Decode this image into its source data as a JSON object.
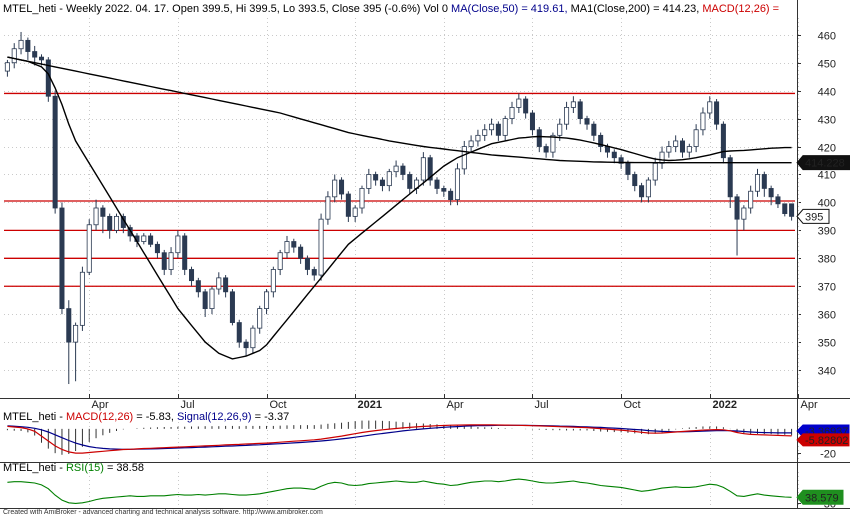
{
  "colors": {
    "bull": "#ffffff",
    "bear": "#2b3a52",
    "wick": "#2b3a52",
    "ma": "#000000",
    "support": "#cc0000",
    "macd": "#cc0000",
    "signal": "#00008b",
    "rsi": "#008000",
    "grid": "#c9c9c9"
  },
  "chart_data": [
    {
      "type": "candlestick",
      "header": {
        "symbol": "MTEL_heti",
        "info": " - Weekly 2022. 04. 17. Open 399.5, Hi 399.5, Lo 393.5, Close 395 (-0.6%) Vol 0 ",
        "ma50": "MA(Close,50) = 419.61, ",
        "ma200": "MA1(Close,200) = 414.23, ",
        "macd": "MACD(12,26) ="
      },
      "ylim": [
        330,
        466
      ],
      "yticks": [
        "340",
        "350",
        "360",
        "370",
        "380",
        "390",
        "400",
        "410",
        "420",
        "430",
        "440",
        "450",
        "460"
      ],
      "xticks": [
        {
          "label": "Apr",
          "i": 12
        },
        {
          "label": "Jul",
          "i": 25
        },
        {
          "label": "Oct",
          "i": 38
        },
        {
          "label": "2021",
          "i": 51
        },
        {
          "label": "Apr",
          "i": 64
        },
        {
          "label": "Jul",
          "i": 77
        },
        {
          "label": "Oct",
          "i": 90
        },
        {
          "label": "2022",
          "i": 103
        },
        {
          "label": "Apr",
          "i": 116
        }
      ],
      "support_levels": [
        439,
        400.5,
        390,
        380,
        370
      ],
      "price_tags": [
        {
          "value": 414.23,
          "label": "414.228",
          "style": "dark"
        },
        {
          "value": 395,
          "label": "395",
          "style": "light"
        }
      ],
      "closes": [
        450,
        455,
        458,
        454,
        452,
        451,
        438,
        398,
        362,
        350,
        356,
        375,
        392,
        398,
        395,
        390,
        395,
        391,
        388,
        386,
        388,
        385,
        382,
        376,
        382,
        388,
        376,
        372,
        368,
        362,
        369,
        373,
        368,
        357,
        350,
        348,
        355,
        362,
        368,
        376,
        382,
        386,
        384,
        380,
        376,
        374,
        394,
        402,
        408,
        403,
        395,
        398,
        405,
        410,
        408,
        406,
        411,
        413,
        410,
        405,
        408,
        416,
        408,
        405,
        404,
        401,
        412,
        420,
        422,
        424,
        426,
        428,
        424,
        430,
        434,
        437,
        432,
        426,
        420,
        418,
        424,
        428,
        434,
        436,
        430,
        428,
        424,
        420,
        418,
        416,
        414,
        410,
        406,
        402,
        408,
        414,
        418,
        420,
        422,
        418,
        420,
        426,
        432,
        436,
        428,
        416,
        402,
        394,
        398,
        404,
        410,
        405,
        402,
        399.5,
        396,
        395
      ],
      "opens": [
        447,
        450,
        455,
        458,
        454,
        452,
        451,
        438,
        398,
        362,
        350,
        356,
        375,
        392,
        398,
        395,
        390,
        395,
        391,
        388,
        386,
        388,
        385,
        382,
        376,
        382,
        388,
        376,
        372,
        368,
        362,
        369,
        373,
        368,
        357,
        350,
        348,
        355,
        362,
        368,
        376,
        382,
        386,
        384,
        380,
        376,
        374,
        394,
        402,
        408,
        403,
        395,
        398,
        405,
        410,
        408,
        406,
        411,
        413,
        410,
        405,
        408,
        416,
        408,
        405,
        404,
        401,
        412,
        420,
        422,
        424,
        426,
        428,
        424,
        430,
        434,
        437,
        432,
        426,
        420,
        418,
        424,
        428,
        434,
        436,
        430,
        428,
        424,
        420,
        418,
        416,
        414,
        410,
        406,
        402,
        408,
        414,
        418,
        420,
        422,
        418,
        420,
        426,
        432,
        436,
        428,
        416,
        402,
        394,
        398,
        404,
        410,
        405,
        402,
        399.5,
        399.5
      ],
      "highs": [
        451,
        457,
        461,
        459,
        456,
        453,
        452,
        440,
        400,
        365,
        357,
        377,
        394,
        401,
        399,
        396,
        396,
        396,
        392,
        389,
        389,
        389,
        386,
        383,
        384,
        390,
        389,
        377,
        373,
        369,
        370,
        375,
        374,
        369,
        358,
        351,
        356,
        363,
        369,
        377,
        383,
        388,
        387,
        385,
        381,
        377,
        396,
        404,
        410,
        409,
        404,
        399,
        406,
        412,
        411,
        409,
        412,
        415,
        414,
        411,
        409,
        418,
        417,
        409,
        406,
        405,
        414,
        422,
        424,
        426,
        428,
        430,
        429,
        431,
        436,
        439,
        438,
        433,
        427,
        421,
        425,
        430,
        436,
        438,
        437,
        431,
        429,
        425,
        421,
        419,
        417,
        415,
        411,
        407,
        409,
        416,
        420,
        422,
        424,
        423,
        421,
        428,
        434,
        438,
        437,
        429,
        417,
        403,
        399,
        406,
        412,
        411,
        406,
        403,
        399.5,
        399.5
      ],
      "lows": [
        445,
        448,
        453,
        451,
        449,
        449,
        436,
        396,
        360,
        335,
        336,
        354,
        374,
        390,
        389,
        387,
        389,
        389,
        386,
        384,
        385,
        384,
        380,
        374,
        374,
        380,
        374,
        370,
        366,
        359,
        360,
        367,
        366,
        356,
        348,
        345,
        346,
        353,
        360,
        366,
        374,
        380,
        382,
        378,
        374,
        372,
        372,
        392,
        400,
        401,
        393,
        393,
        396,
        403,
        406,
        404,
        404,
        409,
        408,
        403,
        403,
        406,
        406,
        403,
        402,
        399,
        399,
        410,
        418,
        420,
        422,
        424,
        422,
        422,
        428,
        432,
        430,
        424,
        418,
        416,
        416,
        422,
        426,
        432,
        428,
        426,
        422,
        418,
        416,
        414,
        412,
        408,
        404,
        400,
        400,
        406,
        412,
        416,
        418,
        416,
        416,
        418,
        424,
        430,
        426,
        414,
        398,
        381,
        390,
        396,
        402,
        402,
        399,
        398,
        395,
        393.5
      ],
      "ma50": [
        452,
        451.5,
        451,
        450.5,
        449.5,
        448.5,
        446,
        441,
        435,
        428,
        422,
        418,
        414,
        410,
        406,
        402,
        398,
        394,
        390,
        386,
        382,
        378,
        374,
        370,
        366,
        362,
        359,
        356,
        353,
        350,
        348,
        346,
        345,
        344,
        344.5,
        345,
        346,
        347,
        349,
        352,
        355,
        358,
        361,
        364,
        367,
        370,
        373,
        376,
        379,
        382,
        385,
        387,
        389,
        391,
        393,
        395,
        397,
        399,
        401,
        403,
        405,
        407,
        409,
        411,
        413,
        414.5,
        416,
        417,
        418,
        419,
        420,
        421,
        421.5,
        422,
        422.5,
        423,
        423.2,
        423.5,
        423.6,
        423.5,
        423.4,
        423.2,
        423,
        422.7,
        422.3,
        421.8,
        421.3,
        420.7,
        420.1,
        419.5,
        418.9,
        418.2,
        417.5,
        416.8,
        416.1,
        415.5,
        415.2,
        415,
        415.1,
        415.3,
        415.6,
        416,
        416.5,
        417,
        417.6,
        418.2,
        418.4,
        418.5,
        418.6,
        418.8,
        419,
        419.2,
        419.4,
        419.5,
        419.6,
        419.6
      ],
      "ma200": [
        null,
        null,
        null,
        null,
        null,
        null,
        null,
        null,
        null,
        null,
        null,
        null,
        null,
        null,
        null,
        null,
        null,
        null,
        null,
        null,
        null,
        null,
        null,
        null,
        null,
        null,
        null,
        null,
        null,
        null,
        null,
        null,
        null,
        null,
        null,
        null,
        null,
        null,
        null,
        null,
        null,
        null,
        null,
        null,
        null,
        null,
        null,
        null,
        null,
        null,
        null,
        null,
        null,
        null,
        null,
        null,
        null,
        null,
        null,
        null,
        null,
        null,
        null,
        null,
        null,
        null,
        null,
        null,
        null,
        null,
        null,
        null,
        null,
        null,
        null,
        null,
        null,
        null,
        null,
        null,
        null,
        null,
        null,
        null,
        null,
        null,
        null,
        null,
        null,
        null,
        null,
        null,
        null,
        null,
        null,
        null,
        null,
        null,
        null,
        null,
        null,
        null,
        null,
        null,
        null,
        null,
        null,
        null,
        null,
        null,
        null,
        null,
        null,
        null,
        null,
        null
      ],
      "ma200_visible": [
        452,
        451.5,
        451,
        450.5,
        450,
        449.5,
        449,
        448.5,
        448,
        447.5,
        447,
        446.5,
        446,
        445.5,
        445,
        444.5,
        444,
        443.5,
        443,
        442.5,
        442,
        441.5,
        441,
        440.5,
        440,
        439.5,
        439,
        438.5,
        438,
        437.5,
        437,
        436.5,
        436,
        435.5,
        435,
        434.5,
        434,
        433.5,
        433,
        432.5,
        432,
        431.3,
        430.6,
        429.9,
        429.2,
        428.5,
        427.8,
        427.1,
        426.4,
        425.7,
        425,
        424.5,
        424,
        423.5,
        423,
        422.5,
        422,
        421.6,
        421.2,
        420.8,
        420.4,
        420,
        419.7,
        419.4,
        419.1,
        418.8,
        418.5,
        418.2,
        417.9,
        417.6,
        417.3,
        417,
        416.8,
        416.6,
        416.4,
        416.2,
        416,
        415.8,
        415.6,
        415.4,
        415.2,
        415,
        414.9,
        414.8,
        414.7,
        414.6,
        414.5,
        414.45,
        414.4,
        414.35,
        414.3,
        414.28,
        414.26,
        414.25,
        414.24,
        414.23,
        414.23,
        414.23,
        414.23,
        414.23,
        414.23,
        414.23,
        414.23,
        414.23,
        414.23,
        414.23,
        414.23,
        414.23,
        414.23,
        414.23,
        414.23,
        414.23,
        414.23,
        414.23,
        414.23,
        414.23
      ]
    },
    {
      "type": "line",
      "header": {
        "symbol": "MTEL_heti",
        "sep": " - ",
        "macd": "MACD(12,26)",
        "macd_val": " = -5.83, ",
        "signal": "Signal(12,26,9)",
        "signal_val": " = -3.37"
      },
      "ylim": [
        -24,
        4
      ],
      "yticks": [
        "-20"
      ],
      "tags": [
        {
          "value": -3.37,
          "label": "-3.36937",
          "style": "blue"
        },
        {
          "value": -5.83,
          "label": "-5.82802",
          "style": "red"
        }
      ],
      "macd": [
        2,
        1.5,
        1,
        0,
        -2,
        -6,
        -10,
        -14,
        -17,
        -19,
        -20,
        -20,
        -19.5,
        -19,
        -18.5,
        -18,
        -17.5,
        -17,
        -16.8,
        -16.5,
        -16.2,
        -16,
        -15.8,
        -15.5,
        -15.3,
        -15,
        -14.8,
        -14.5,
        -14.3,
        -14,
        -13.8,
        -13.5,
        -13.2,
        -13,
        -12.8,
        -12.5,
        -12.2,
        -12,
        -11.7,
        -11.4,
        -11,
        -10.6,
        -10.2,
        -9.8,
        -9.4,
        -9,
        -8.4,
        -7.6,
        -6.8,
        -6,
        -5,
        -4,
        -3,
        -2.2,
        -1.4,
        -0.8,
        -0.2,
        0.3,
        0.8,
        1.2,
        1.6,
        2,
        2.3,
        2.6,
        2.8,
        3,
        3.1,
        3.2,
        3.3,
        3.3,
        3.3,
        3.3,
        3.2,
        3.1,
        3,
        2.9,
        2.8,
        2.6,
        2.4,
        2.2,
        2,
        1.8,
        1.6,
        1.4,
        1.2,
        1,
        0.6,
        0.2,
        -0.2,
        -0.6,
        -1,
        -1.6,
        -2.2,
        -2.8,
        -3.4,
        -3.6,
        -3.4,
        -3,
        -2.6,
        -2.2,
        -1.8,
        -1.4,
        -1,
        -0.8,
        -0.6,
        -0.8,
        -1.6,
        -3,
        -4,
        -4.6,
        -4.8,
        -5,
        -5.2,
        -5.4,
        -5.6,
        -5.83
      ],
      "signal": [
        2.5,
        2.2,
        1.8,
        1.3,
        0.5,
        -0.8,
        -2.6,
        -4.9,
        -7.3,
        -9.6,
        -11.7,
        -13.3,
        -14.6,
        -15.5,
        -16.1,
        -16.5,
        -16.7,
        -16.8,
        -16.8,
        -16.7,
        -16.6,
        -16.5,
        -16.4,
        -16.2,
        -16,
        -15.8,
        -15.6,
        -15.4,
        -15.2,
        -15,
        -14.8,
        -14.5,
        -14.3,
        -14.1,
        -13.8,
        -13.6,
        -13.3,
        -13.1,
        -12.8,
        -12.5,
        -12.2,
        -11.9,
        -11.6,
        -11.2,
        -10.8,
        -10.4,
        -10,
        -9.5,
        -8.9,
        -8.3,
        -7.6,
        -6.9,
        -6.1,
        -5.3,
        -4.5,
        -3.8,
        -3.1,
        -2.4,
        -1.7,
        -1.1,
        -0.5,
        0,
        0.5,
        0.9,
        1.3,
        1.6,
        1.9,
        2.2,
        2.4,
        2.6,
        2.7,
        2.8,
        2.9,
        2.9,
        2.9,
        2.9,
        2.9,
        2.8,
        2.7,
        2.6,
        2.5,
        2.3,
        2.2,
        2,
        1.8,
        1.6,
        1.4,
        1.2,
        0.9,
        0.6,
        0.3,
        -0.1,
        -0.5,
        -0.9,
        -1.4,
        -1.8,
        -2.1,
        -2.3,
        -2.4,
        -2.4,
        -2.3,
        -2.1,
        -1.9,
        -1.7,
        -1.5,
        -1.4,
        -1.5,
        -1.8,
        -2.2,
        -2.6,
        -2.9,
        -3.1,
        -3.2,
        -3.3,
        -3.35,
        -3.37
      ]
    },
    {
      "type": "line",
      "header": {
        "symbol": "MTEL_heti",
        "sep": " - ",
        "rsi": "RSI(15)",
        "rsi_val": " = 38.58"
      },
      "ylim": [
        25,
        75
      ],
      "yticks": [
        "30"
      ],
      "tags": [
        {
          "value": 38.58,
          "label": "38.579",
          "style": "green"
        }
      ],
      "rsi": [
        62,
        63,
        63,
        62,
        61,
        58,
        52,
        42,
        34,
        30,
        29,
        30,
        32,
        35,
        37,
        38,
        39,
        40,
        41,
        40,
        40,
        41,
        41,
        41,
        42,
        43,
        42,
        42,
        43,
        42,
        43,
        44,
        44,
        43,
        42,
        42,
        43,
        44,
        46,
        48,
        50,
        52,
        53,
        53,
        52,
        51,
        56,
        60,
        62,
        61,
        58,
        57,
        58,
        60,
        61,
        62,
        63,
        64,
        63,
        62,
        62,
        64,
        62,
        60,
        59,
        57,
        58,
        60,
        62,
        63,
        64,
        64,
        63,
        64,
        66,
        67,
        66,
        64,
        62,
        61,
        61,
        62,
        63,
        64,
        62,
        61,
        59,
        57,
        56,
        55,
        54,
        52,
        50,
        48,
        49,
        51,
        53,
        54,
        55,
        54,
        54,
        55,
        57,
        59,
        58,
        54,
        48,
        41,
        40,
        42,
        44,
        42,
        41,
        40,
        39,
        38.58
      ]
    }
  ],
  "footer": "Created with AmiBroker - advanced charting and technical analysis software. http://www.amibroker.com"
}
